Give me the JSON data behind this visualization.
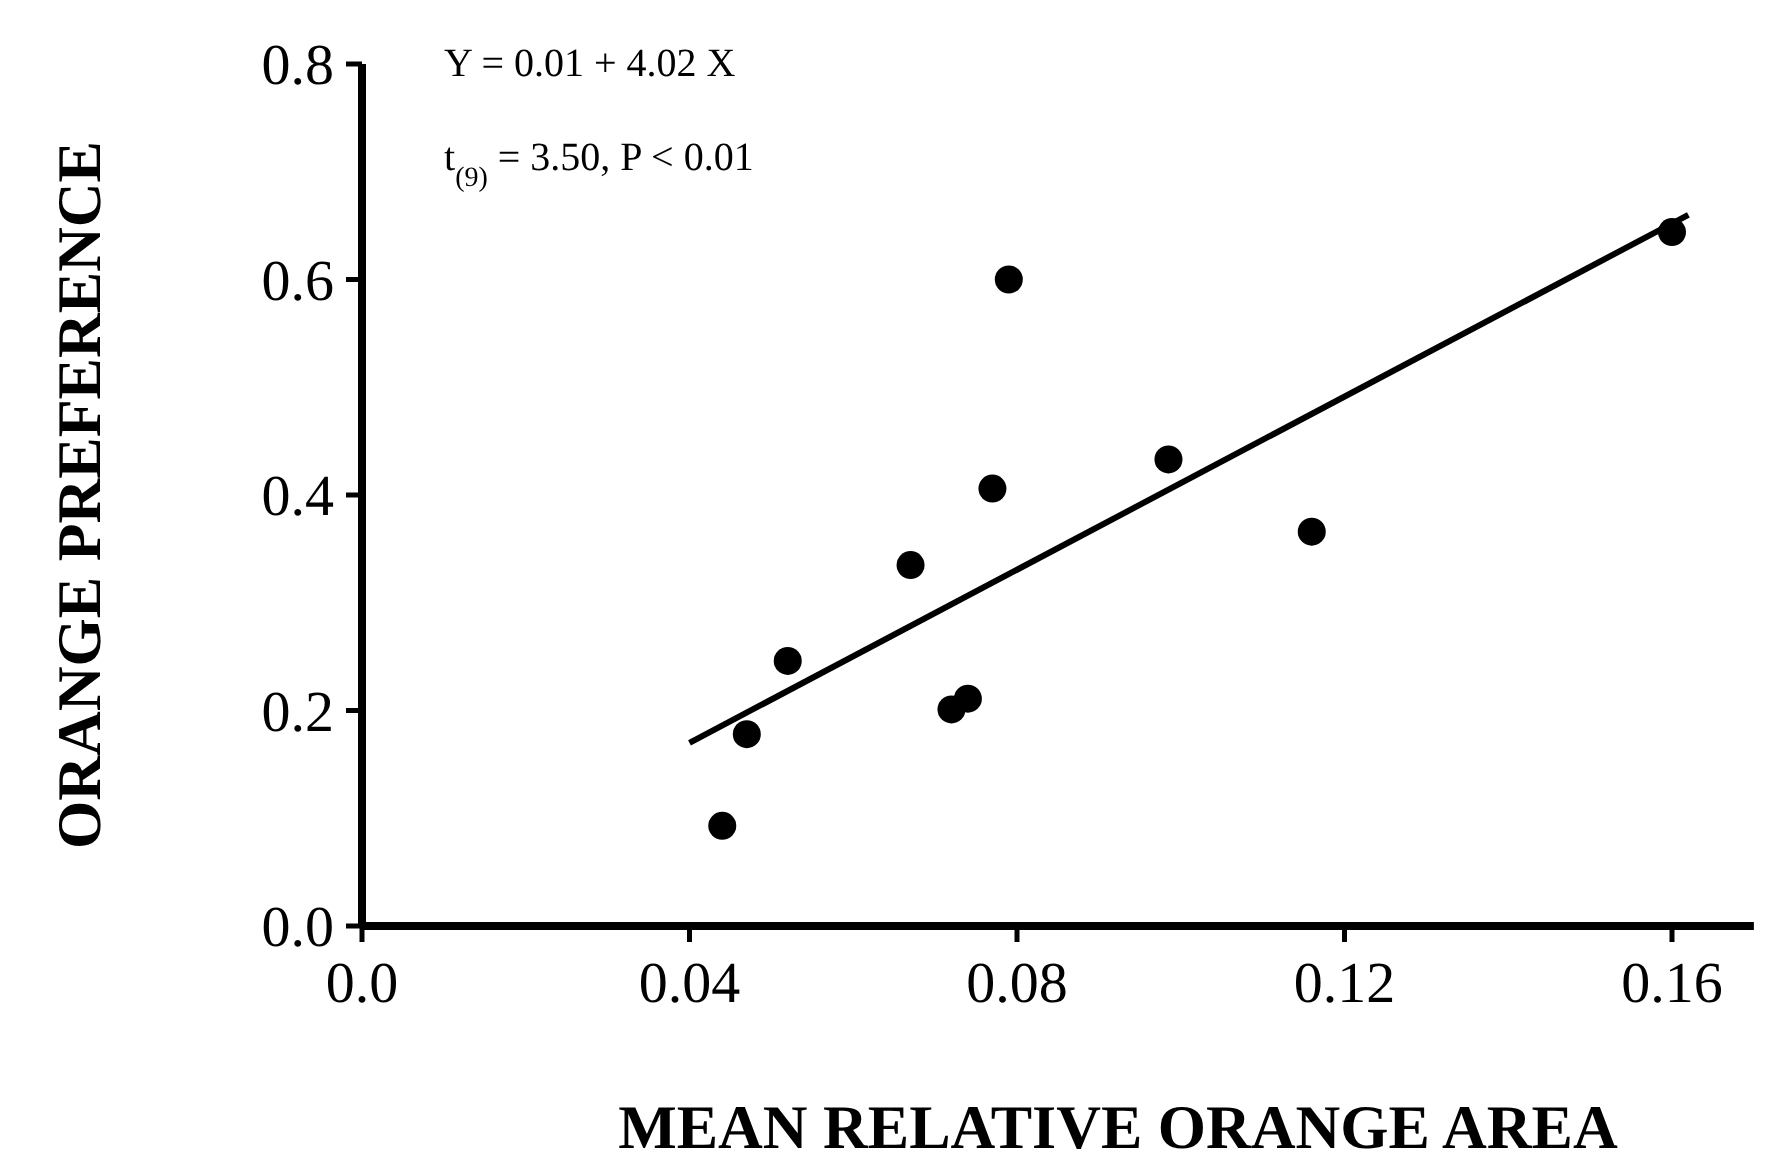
{
  "chart_data": {
    "type": "scatter",
    "xlabel": "MEAN RELATIVE ORANGE AREA",
    "ylabel": "ORANGE PREFERENCE",
    "xlim": [
      0,
      0.17
    ],
    "ylim": [
      0,
      0.8
    ],
    "xticks": [
      {
        "value": 0,
        "label": "0.0"
      },
      0.04,
      0.08,
      0.12,
      0.16
    ],
    "yticks": [
      {
        "value": 0,
        "label": "0.0"
      },
      0.2,
      0.4,
      0.6,
      0.8
    ],
    "grid": false,
    "marker": "circle",
    "annotations": [
      "Y = 0.01 + 4.02 X",
      "t$_{(9)}$ = 3.50, P < 0.01"
    ],
    "series": [
      {
        "color": "#000000",
        "x": [
          0.044,
          0.047,
          0.052,
          0.067,
          0.072,
          0.074,
          0.077,
          0.079,
          0.0985,
          0.116,
          0.16
        ],
        "values": [
          0.093,
          0.178,
          0.246,
          0.335,
          0.201,
          0.211,
          0.406,
          0.6,
          0.433,
          0.366,
          0.644
        ]
      },
      {
        "type": "line",
        "color": "#000000",
        "x": [
          0.04,
          0.162
        ],
        "values": [
          0.17,
          0.66
        ],
        "marker": "none",
        "line_style": "solid"
      }
    ]
  }
}
